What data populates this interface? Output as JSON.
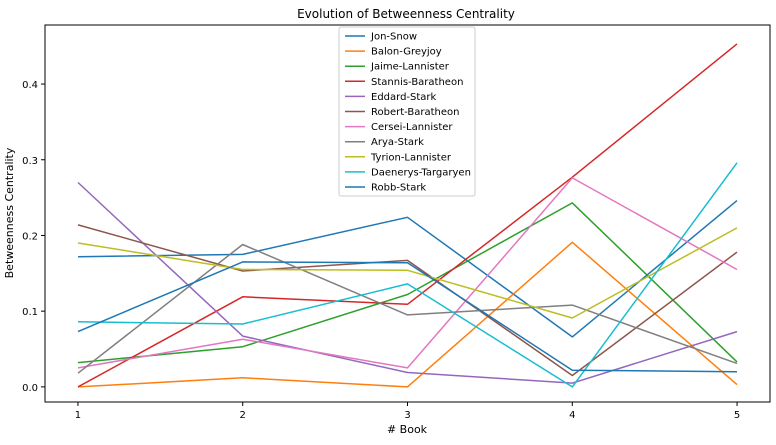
{
  "chart_data": {
    "type": "line",
    "title": "Evolution of Betweenness Centrality",
    "xlabel": "# Book",
    "ylabel": "Betweenness Centrality",
    "x": [
      1,
      2,
      3,
      4,
      5
    ],
    "x_ticks": [
      "1",
      "2",
      "3",
      "4",
      "5"
    ],
    "y_ticks": [
      "0.0",
      "0.1",
      "0.2",
      "0.3",
      "0.4"
    ],
    "xlim": [
      0.8,
      5.2
    ],
    "ylim": [
      -0.02,
      0.478
    ],
    "grid": false,
    "legend_position": "top-center",
    "series": [
      {
        "name": "Jon-Snow",
        "color": "#1f77b4",
        "values": [
          0.172,
          0.175,
          0.224,
          0.066,
          0.246
        ]
      },
      {
        "name": "Balon-Greyjoy",
        "color": "#ff7f0e",
        "values": [
          0.0,
          0.012,
          0.0,
          0.191,
          0.003
        ]
      },
      {
        "name": "Jaime-Lannister",
        "color": "#2ca02c",
        "values": [
          0.032,
          0.053,
          0.122,
          0.243,
          0.033
        ]
      },
      {
        "name": "Stannis-Baratheon",
        "color": "#d62728",
        "values": [
          0.0,
          0.119,
          0.109,
          0.277,
          0.453
        ]
      },
      {
        "name": "Eddard-Stark",
        "color": "#9467bd",
        "values": [
          0.27,
          0.067,
          0.019,
          0.005,
          0.073
        ]
      },
      {
        "name": "Robert-Baratheon",
        "color": "#8c564b",
        "values": [
          0.214,
          0.153,
          0.167,
          0.015,
          0.178
        ]
      },
      {
        "name": "Cersei-Lannister",
        "color": "#e377c2",
        "values": [
          0.025,
          0.063,
          0.025,
          0.276,
          0.155
        ]
      },
      {
        "name": "Arya-Stark",
        "color": "#7f7f7f",
        "values": [
          0.018,
          0.188,
          0.095,
          0.108,
          0.031
        ]
      },
      {
        "name": "Tyrion-Lannister",
        "color": "#bcbd22",
        "values": [
          0.19,
          0.155,
          0.154,
          0.091,
          0.21
        ]
      },
      {
        "name": "Daenerys-Targaryen",
        "color": "#17becf",
        "values": [
          0.086,
          0.083,
          0.136,
          0.0,
          0.296
        ]
      },
      {
        "name": "Robb-Stark",
        "color": "#1f77b4",
        "values": [
          0.073,
          0.165,
          0.164,
          0.022,
          0.02
        ]
      }
    ]
  }
}
